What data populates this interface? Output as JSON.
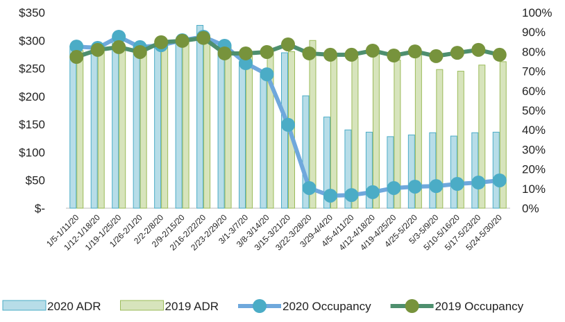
{
  "chart_data": {
    "type": "bar-line",
    "categories": [
      "1/5-1/11/20",
      "1/12-1/18/20",
      "1/19-1/25/20",
      "1/26-2/1/20",
      "2/2-2/8/20",
      "2/9-2/15/20",
      "2/16-2/22/20",
      "2/23-2/29/20",
      "3/1-3/7/20",
      "3/8-3/14/20",
      "3/15-3/21/20",
      "3/22-3/28/20",
      "3/29-4/4/20",
      "4/5-4/11/20",
      "4/12-4/18/20",
      "4/19-4/25/20",
      "4/25-5/2/20",
      "5/3-5/9/20",
      "5/10-5/16/20",
      "5/17-5/23/20",
      "5/24-5/30/20"
    ],
    "series": [
      {
        "name": "2020 ADR",
        "kind": "bar",
        "color": "#b7dde8",
        "stroke": "#4bacc6",
        "values": [
          290,
          288,
          305,
          290,
          292,
          300,
          327,
          290,
          262,
          245,
          278,
          201,
          163,
          140,
          136,
          128,
          131,
          135,
          129,
          135,
          136
        ]
      },
      {
        "name": "2019 ADR",
        "kind": "bar",
        "color": "#d7e4bc",
        "stroke": "#9bbb59",
        "values": [
          282,
          285,
          290,
          283,
          290,
          297,
          305,
          288,
          272,
          276,
          280,
          300,
          270,
          270,
          282,
          265,
          275,
          248,
          245,
          256,
          262
        ]
      },
      {
        "name": "2020 Occupancy",
        "kind": "line",
        "axis": "y2",
        "color": "#6fa8dc",
        "marker_color": "#4bacc6",
        "values": [
          82.6,
          81.9,
          87.6,
          82.3,
          83.3,
          85.8,
          87.6,
          83,
          74.1,
          68.4,
          42.6,
          10.3,
          6.4,
          6.7,
          8.2,
          10.3,
          11,
          11.3,
          12.4,
          13.1,
          14.2
        ]
      },
      {
        "name": "2019 Occupancy",
        "kind": "line",
        "axis": "y2",
        "color": "#4e8f6e",
        "marker_color": "#77933c",
        "values": [
          77.3,
          80.9,
          82.3,
          79.8,
          84.8,
          85.5,
          87,
          79.1,
          79.1,
          79.8,
          83.7,
          79.1,
          78.4,
          78.4,
          80.5,
          78,
          80.1,
          77.7,
          79.4,
          80.9,
          78.4
        ]
      }
    ],
    "ylim": [
      0,
      350
    ],
    "yticks": [
      {
        "value": 0,
        "label": "$-"
      },
      {
        "value": 50,
        "label": "$50"
      },
      {
        "value": 100,
        "label": "$100"
      },
      {
        "value": 150,
        "label": "$150"
      },
      {
        "value": 200,
        "label": "$200"
      },
      {
        "value": 250,
        "label": "$250"
      },
      {
        "value": 300,
        "label": "$300"
      },
      {
        "value": 350,
        "label": "$350"
      }
    ],
    "y2lim": [
      0,
      100
    ],
    "y2ticks": [
      {
        "value": 0,
        "label": "0%"
      },
      {
        "value": 10,
        "label": "10%"
      },
      {
        "value": 20,
        "label": "20%"
      },
      {
        "value": 30,
        "label": "30%"
      },
      {
        "value": 40,
        "label": "40%"
      },
      {
        "value": 50,
        "label": "50%"
      },
      {
        "value": 60,
        "label": "60%"
      },
      {
        "value": 70,
        "label": "70%"
      },
      {
        "value": 80,
        "label": "80%"
      },
      {
        "value": 90,
        "label": "90%"
      },
      {
        "value": 100,
        "label": "100%"
      }
    ]
  }
}
